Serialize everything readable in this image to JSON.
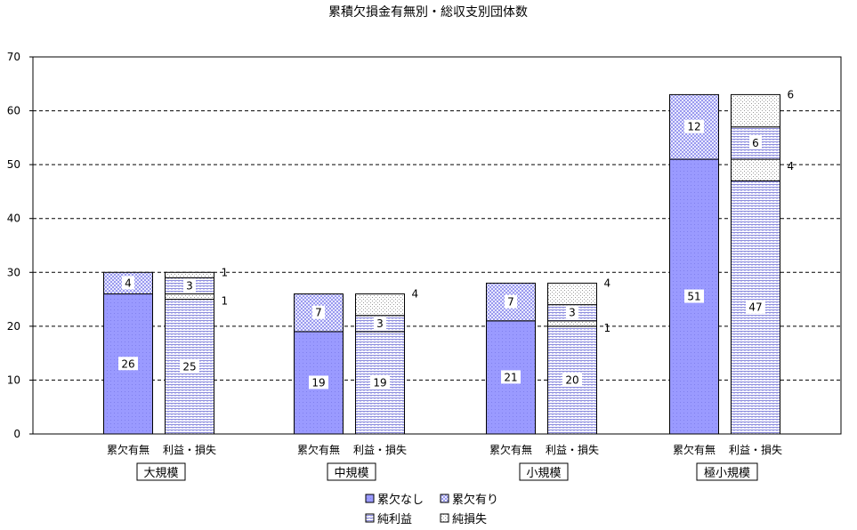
{
  "chart_data": {
    "type": "bar",
    "title": "累積欠損金有無別・総収支別団体数",
    "ylim": [
      0,
      70
    ],
    "yticks": [
      0,
      10,
      20,
      30,
      40,
      50,
      60,
      70
    ],
    "grid": true,
    "legend_position": "bottom",
    "colors": {
      "累欠なし": "#9999ff",
      "累欠有り": "#c8c8f0",
      "純利益": "#c8c8f0",
      "純損失": "#ffffff"
    },
    "groups": [
      {
        "name": "大規模",
        "bars": [
          {
            "label": "累欠有無",
            "segments": [
              {
                "series": "累欠なし",
                "value": 26,
                "label": "26"
              },
              {
                "series": "累欠有り",
                "value": 4,
                "label": "4"
              }
            ]
          },
          {
            "label": "利益・損失",
            "segments": [
              {
                "series": "純利益",
                "value": 25,
                "label": "25"
              },
              {
                "series": "純損失",
                "value": 1,
                "label": "1"
              },
              {
                "series": "純利益",
                "value": 3,
                "label": "3"
              },
              {
                "series": "純損失",
                "value": 1,
                "label": "1"
              }
            ]
          }
        ]
      },
      {
        "name": "中規模",
        "bars": [
          {
            "label": "累欠有無",
            "segments": [
              {
                "series": "累欠なし",
                "value": 19,
                "label": "19"
              },
              {
                "series": "累欠有り",
                "value": 7,
                "label": "7"
              }
            ]
          },
          {
            "label": "利益・損失",
            "segments": [
              {
                "series": "純利益",
                "value": 19,
                "label": "19"
              },
              {
                "series": "純利益",
                "value": 3,
                "label": "3"
              },
              {
                "series": "純損失",
                "value": 4,
                "label": "4"
              }
            ]
          }
        ]
      },
      {
        "name": "小規模",
        "bars": [
          {
            "label": "累欠有無",
            "segments": [
              {
                "series": "累欠なし",
                "value": 21,
                "label": "21"
              },
              {
                "series": "累欠有り",
                "value": 7,
                "label": "7"
              }
            ]
          },
          {
            "label": "利益・損失",
            "segments": [
              {
                "series": "純利益",
                "value": 20,
                "label": "20"
              },
              {
                "series": "純損失",
                "value": 1,
                "label": "1"
              },
              {
                "series": "純利益",
                "value": 3,
                "label": "3"
              },
              {
                "series": "純損失",
                "value": 4,
                "label": "4"
              }
            ]
          }
        ]
      },
      {
        "name": "極小規模",
        "bars": [
          {
            "label": "累欠有無",
            "segments": [
              {
                "series": "累欠なし",
                "value": 51,
                "label": "51"
              },
              {
                "series": "累欠有り",
                "value": 12,
                "label": "12"
              }
            ]
          },
          {
            "label": "利益・損失",
            "segments": [
              {
                "series": "純利益",
                "value": 47,
                "label": "47"
              },
              {
                "series": "純損失",
                "value": 4,
                "label": "4"
              },
              {
                "series": "純利益",
                "value": 6,
                "label": "6"
              },
              {
                "series": "純損失",
                "value": 6,
                "label": "6"
              }
            ]
          }
        ]
      }
    ],
    "legend": [
      {
        "series": "累欠なし",
        "label": "累欠なし"
      },
      {
        "series": "累欠有り",
        "label": "累欠有り"
      },
      {
        "series": "純利益",
        "label": "純利益"
      },
      {
        "series": "純損失",
        "label": "純損失"
      }
    ]
  }
}
